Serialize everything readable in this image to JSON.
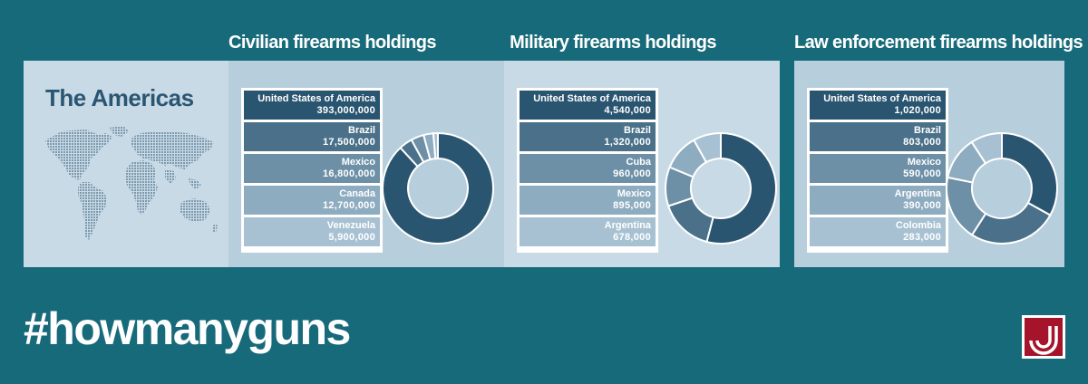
{
  "region": "The Americas",
  "hashtag": "#howmanyguns",
  "colors": {
    "background": "#176a7a",
    "shades": [
      "#2a5570",
      "#4a7189",
      "#6d90a7",
      "#8eacc0",
      "#a7c1d2"
    ],
    "list_text": [
      "#ffffff",
      "#ffffff",
      "#ffffff",
      "#ffffff",
      "#ffffff"
    ],
    "logo": "#a5142b"
  },
  "chart_data": [
    {
      "type": "pie",
      "title": "Civilian firearms holdings",
      "categories": [
        "United States of America",
        "Brazil",
        "Mexico",
        "Canada",
        "Venezuela"
      ],
      "labels": [
        "393,000,000",
        "17,500,000",
        "16,800,000",
        "12,700,000",
        "5,900,000"
      ],
      "values": [
        393000000,
        17500000,
        16800000,
        12700000,
        5900000
      ]
    },
    {
      "type": "pie",
      "title": "Military firearms holdings",
      "categories": [
        "United States of America",
        "Brazil",
        "Cuba",
        "Mexico",
        "Argentina"
      ],
      "labels": [
        "4,540,000",
        "1,320,000",
        "960,000",
        "895,000",
        "678,000"
      ],
      "values": [
        4540000,
        1320000,
        960000,
        895000,
        678000
      ]
    },
    {
      "type": "pie",
      "title": "Law enforcement firearms holdings",
      "categories": [
        "United States of America",
        "Brazil",
        "Mexico",
        "Argentina",
        "Colombia"
      ],
      "labels": [
        "1,020,000",
        "803,000",
        "590,000",
        "390,000",
        "283,000"
      ],
      "values": [
        1020000,
        803000,
        590000,
        390000,
        283000
      ]
    }
  ]
}
